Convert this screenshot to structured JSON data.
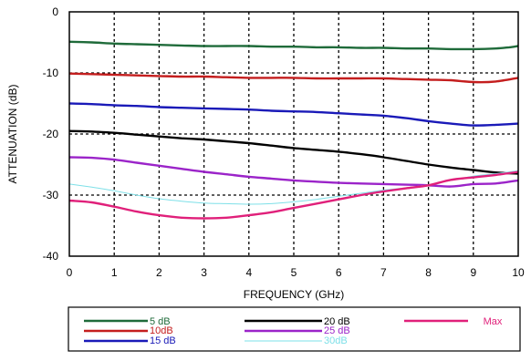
{
  "chart_data": {
    "type": "line",
    "xlabel": "FREQUENCY (GHz)",
    "ylabel": "ATTENUATION  (dB)",
    "xlim": [
      0,
      10
    ],
    "ylim": [
      -40,
      0
    ],
    "x_ticks": [
      "0",
      "1",
      "2",
      "3",
      "4",
      "5",
      "6",
      "7",
      "8",
      "9",
      "10"
    ],
    "y_ticks": [
      "0",
      "-10",
      "-20",
      "-30",
      "-40"
    ],
    "grid": "dashed",
    "legend_position": "bottom",
    "series": [
      {
        "name": "5 dB",
        "color": "#1f6b3a",
        "label_color": "#1f6b3a",
        "x": [
          0,
          0.5,
          1,
          1.5,
          2,
          2.5,
          3,
          3.5,
          4,
          4.5,
          5,
          5.5,
          6,
          6.5,
          7,
          7.5,
          8,
          8.5,
          9,
          9.5,
          9.8,
          10
        ],
        "y": [
          -4.9,
          -5.0,
          -5.2,
          -5.3,
          -5.4,
          -5.5,
          -5.6,
          -5.6,
          -5.6,
          -5.7,
          -5.7,
          -5.8,
          -5.8,
          -5.9,
          -5.9,
          -6.0,
          -6.0,
          -6.1,
          -6.1,
          -6.0,
          -5.8,
          -5.6
        ]
      },
      {
        "name": "10dB",
        "color": "#c41e1e",
        "label_color": "#c41e1e",
        "x": [
          0,
          0.5,
          1,
          1.5,
          2,
          2.5,
          3,
          3.5,
          4,
          4.5,
          5,
          5.5,
          6,
          6.5,
          7,
          7.5,
          8,
          8.5,
          9,
          9.5,
          10
        ],
        "y": [
          -10.1,
          -10.2,
          -10.3,
          -10.4,
          -10.5,
          -10.6,
          -10.6,
          -10.7,
          -10.8,
          -10.8,
          -10.8,
          -10.9,
          -10.9,
          -10.9,
          -10.9,
          -11.0,
          -11.1,
          -11.2,
          -11.5,
          -11.4,
          -10.8
        ]
      },
      {
        "name": "15 dB",
        "color": "#1a1ab8",
        "label_color": "#1a1ab8",
        "x": [
          0,
          0.5,
          1,
          1.5,
          2,
          2.5,
          3,
          3.5,
          4,
          4.5,
          5,
          5.5,
          6,
          6.5,
          7,
          7.5,
          8,
          8.5,
          9,
          9.5,
          10
        ],
        "y": [
          -15.0,
          -15.1,
          -15.3,
          -15.4,
          -15.6,
          -15.7,
          -15.8,
          -15.9,
          -16.0,
          -16.2,
          -16.3,
          -16.4,
          -16.6,
          -16.8,
          -17.0,
          -17.4,
          -17.9,
          -18.3,
          -18.6,
          -18.5,
          -18.3
        ]
      },
      {
        "name": "20 dB",
        "color": "#000000",
        "label_color": "#000000",
        "x": [
          0,
          0.5,
          1,
          1.5,
          2,
          2.5,
          3,
          3.5,
          4,
          4.5,
          5,
          5.5,
          6,
          6.5,
          7,
          7.5,
          8,
          8.5,
          9,
          9.5,
          10
        ],
        "y": [
          -19.5,
          -19.6,
          -19.8,
          -20.1,
          -20.4,
          -20.7,
          -20.9,
          -21.2,
          -21.5,
          -21.9,
          -22.3,
          -22.6,
          -22.9,
          -23.3,
          -23.8,
          -24.4,
          -25.0,
          -25.5,
          -25.9,
          -26.3,
          -26.5
        ]
      },
      {
        "name": "25 dB",
        "color": "#9b24c9",
        "label_color": "#9b24c9",
        "x": [
          0,
          0.5,
          1,
          1.5,
          2,
          2.5,
          3,
          3.5,
          4,
          4.5,
          5,
          5.5,
          6,
          6.5,
          7,
          7.5,
          8,
          8.5,
          9,
          9.5,
          10
        ],
        "y": [
          -23.8,
          -23.9,
          -24.2,
          -24.7,
          -25.2,
          -25.7,
          -26.2,
          -26.6,
          -27.0,
          -27.3,
          -27.6,
          -27.8,
          -28.0,
          -28.1,
          -28.2,
          -28.3,
          -28.4,
          -28.6,
          -28.2,
          -28.1,
          -27.6
        ]
      },
      {
        "name": "30dB",
        "color": "#7ee0e8",
        "label_color": "#7ee0e8",
        "x": [
          0,
          0.5,
          1,
          1.5,
          2,
          2.5,
          3,
          3.5,
          4,
          4.5,
          5,
          5.5,
          6,
          6.5,
          7,
          7.5,
          8,
          8.5,
          9,
          9.5,
          10
        ],
        "y": [
          -28.2,
          -28.7,
          -29.3,
          -30.0,
          -30.6,
          -31.0,
          -31.3,
          -31.4,
          -31.5,
          -31.4,
          -31.1,
          -30.7,
          -30.2,
          -29.7,
          -29.2,
          -28.8,
          -28.3,
          -27.6,
          -26.9,
          -26.5,
          -26.0
        ]
      },
      {
        "name": "Max",
        "color": "#e0207a",
        "label_color": "#e0207a",
        "x": [
          0,
          0.5,
          1,
          1.5,
          2,
          2.5,
          3,
          3.5,
          4,
          4.5,
          5,
          5.5,
          6,
          6.5,
          7,
          7.5,
          8,
          8.5,
          9,
          9.5,
          10
        ],
        "y": [
          -30.9,
          -31.2,
          -31.9,
          -32.7,
          -33.3,
          -33.7,
          -33.8,
          -33.7,
          -33.3,
          -32.8,
          -32.1,
          -31.4,
          -30.7,
          -30.0,
          -29.4,
          -28.9,
          -28.4,
          -27.5,
          -27.1,
          -26.7,
          -26.2
        ]
      }
    ]
  }
}
